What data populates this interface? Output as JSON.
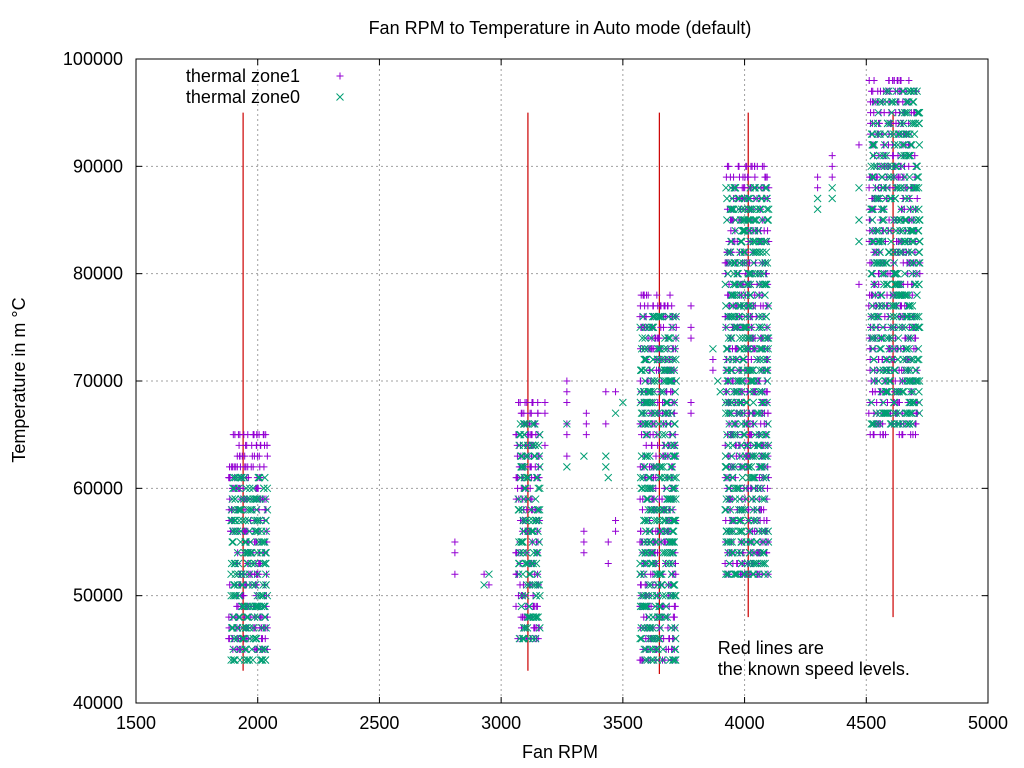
{
  "chart_data": {
    "type": "scatter",
    "title": "Fan RPM to Temperature in Auto mode (default)",
    "xlabel": "Fan RPM",
    "ylabel": "Temperature in m °C",
    "xlim": [
      1500,
      5000
    ],
    "ylim": [
      40000,
      100000
    ],
    "x_ticks": [
      1500,
      2000,
      2500,
      3000,
      3500,
      4000,
      4500,
      5000
    ],
    "y_ticks": [
      40000,
      50000,
      60000,
      70000,
      80000,
      90000,
      100000
    ],
    "grid": true,
    "legend_position": "top-left",
    "series": [
      {
        "name": "thermal zone1",
        "marker": "+",
        "color": "#9400d3",
        "clusters": [
          {
            "x_range": [
              1880,
              2040
            ],
            "y_range": [
              45000,
              65000
            ]
          },
          {
            "x_range": [
              3060,
              3160
            ],
            "y_range": [
              46000,
              68000
            ]
          },
          {
            "x_range": [
              3570,
              3720
            ],
            "y_range": [
              44000,
              78000
            ]
          },
          {
            "x_range": [
              3920,
              4100
            ],
            "y_range": [
              52000,
              90000
            ]
          },
          {
            "x_range": [
              4510,
              4710
            ],
            "y_range": [
              65000,
              98000
            ]
          }
        ],
        "points": [
          [
            2810,
            55000
          ],
          [
            2810,
            54000
          ],
          [
            2810,
            52000
          ],
          [
            2930,
            52000
          ],
          [
            2950,
            51000
          ],
          [
            3180,
            68000
          ],
          [
            3180,
            67000
          ],
          [
            3180,
            64000
          ],
          [
            3270,
            70000
          ],
          [
            3270,
            69000
          ],
          [
            3270,
            68000
          ],
          [
            3270,
            66000
          ],
          [
            3270,
            65000
          ],
          [
            3270,
            63000
          ],
          [
            3340,
            56000
          ],
          [
            3340,
            55000
          ],
          [
            3340,
            54000
          ],
          [
            3350,
            67000
          ],
          [
            3350,
            66000
          ],
          [
            3350,
            65000
          ],
          [
            3430,
            69000
          ],
          [
            3430,
            66000
          ],
          [
            3440,
            55000
          ],
          [
            3440,
            53000
          ],
          [
            3470,
            69000
          ],
          [
            3470,
            57000
          ],
          [
            3470,
            56000
          ],
          [
            3780,
            77000
          ],
          [
            3780,
            75000
          ],
          [
            3780,
            74000
          ],
          [
            3780,
            68000
          ],
          [
            3780,
            67000
          ],
          [
            3870,
            72000
          ],
          [
            3870,
            71000
          ],
          [
            4080,
            90000
          ],
          [
            4080,
            87000
          ],
          [
            4300,
            89000
          ],
          [
            4300,
            88000
          ],
          [
            4360,
            91000
          ],
          [
            4360,
            90000
          ],
          [
            4360,
            89000
          ],
          [
            4470,
            92000
          ],
          [
            4470,
            79000
          ],
          [
            4720,
            80000
          ],
          [
            4720,
            81000
          ]
        ]
      },
      {
        "name": "thermal zone0",
        "marker": "x",
        "color": "#009e73",
        "clusters": [
          {
            "x_range": [
              1890,
              2040
            ],
            "y_range": [
              44000,
              61000
            ]
          },
          {
            "x_range": [
              3070,
              3160
            ],
            "y_range": [
              46000,
              66000
            ]
          },
          {
            "x_range": [
              3570,
              3720
            ],
            "y_range": [
              44000,
              76000
            ]
          },
          {
            "x_range": [
              3920,
              4100
            ],
            "y_range": [
              52000,
              88000
            ]
          },
          {
            "x_range": [
              4520,
              4720
            ],
            "y_range": [
              66000,
              97000
            ]
          }
        ],
        "points": [
          [
            2930,
            51000
          ],
          [
            2950,
            52000
          ],
          [
            3270,
            66000
          ],
          [
            3270,
            62000
          ],
          [
            3340,
            63000
          ],
          [
            3430,
            63000
          ],
          [
            3430,
            62000
          ],
          [
            3440,
            61000
          ],
          [
            3470,
            67000
          ],
          [
            3500,
            68000
          ],
          [
            3870,
            73000
          ],
          [
            3890,
            70000
          ],
          [
            3900,
            69000
          ],
          [
            4300,
            87000
          ],
          [
            4300,
            86000
          ],
          [
            4360,
            88000
          ],
          [
            4360,
            87000
          ],
          [
            4470,
            88000
          ],
          [
            4470,
            85000
          ],
          [
            4470,
            83000
          ],
          [
            4720,
            83000
          ]
        ]
      }
    ],
    "reference_lines": {
      "color": "#cc0000",
      "lines": [
        {
          "x": 1940,
          "y_range": [
            43000,
            95000
          ]
        },
        {
          "x": 3110,
          "y_range": [
            43000,
            95000
          ]
        },
        {
          "x": 3650,
          "y_range": [
            42700,
            95000
          ]
        },
        {
          "x": 4015,
          "y_range": [
            48000,
            95000
          ]
        },
        {
          "x": 4610,
          "y_range": [
            48000,
            95000
          ]
        }
      ]
    },
    "annotation": {
      "line1": "Red lines are",
      "line2": "the known speed levels.",
      "x": 3890,
      "y": 45000
    }
  }
}
